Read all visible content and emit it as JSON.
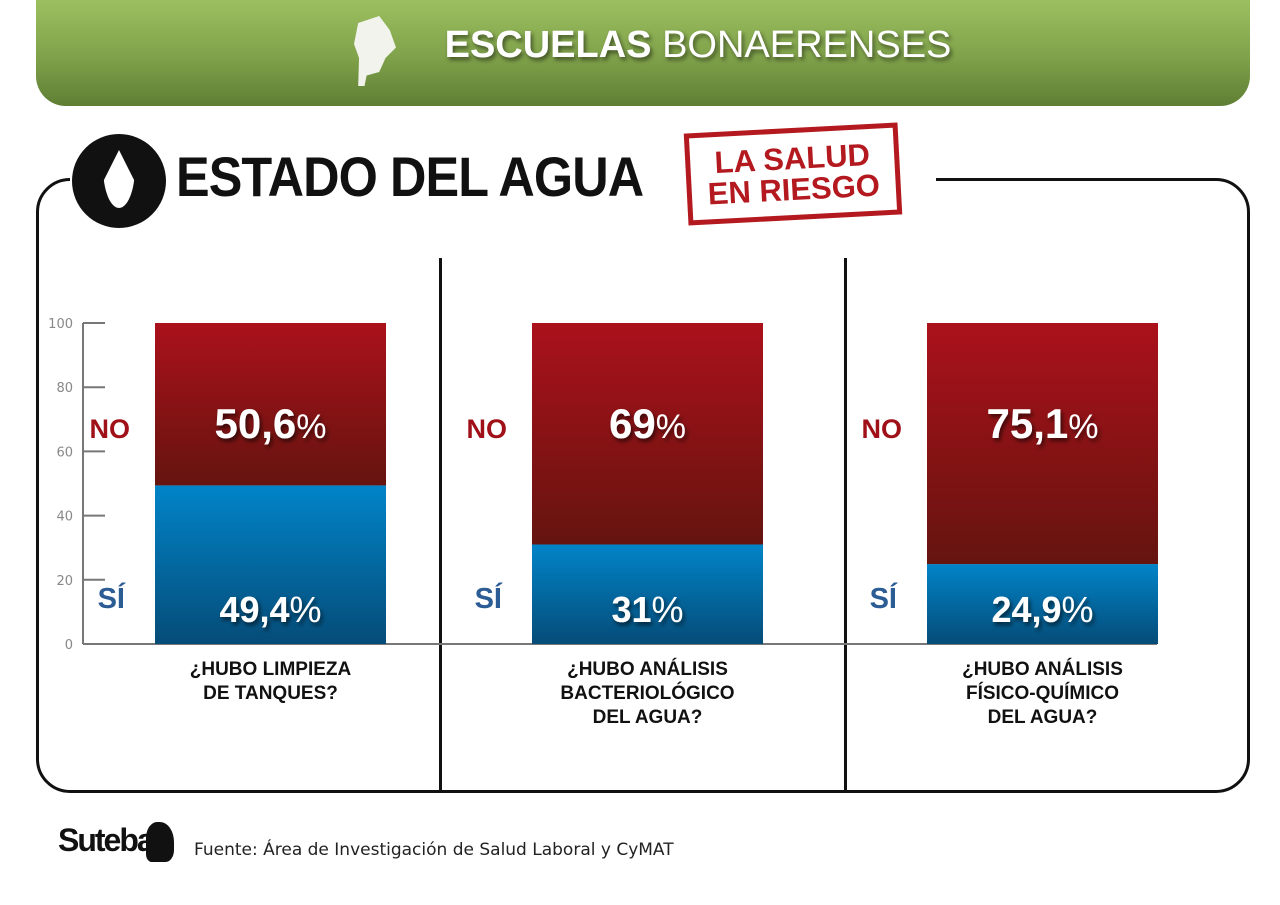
{
  "header": {
    "title_bold": "ESCUELAS",
    "title_light": "BONAERENSES"
  },
  "title": "ESTADO DEL AGUA",
  "stamp": [
    "LA SALUD",
    "EN RIESGO"
  ],
  "footer": {
    "logo": "Suteba",
    "source": "Fuente: Área de Investigación de Salud Laboral y CyMAT"
  },
  "colors": {
    "no": "#a8101a",
    "si": "#0080c4",
    "no_label": "#a01018",
    "si_label": "#2b5c94"
  },
  "chart_data": {
    "type": "bar",
    "stacked": true,
    "categories": [
      "¿HUBO LIMPIEZA\nDE TANQUES?",
      "¿HUBO ANÁLISIS\nBACTERIOLÓGICO\nDEL AGUA?",
      "¿HUBO ANÁLISIS\nFÍSICO-QUÍMICO\nDEL AGUA?"
    ],
    "series": [
      {
        "name": "SÍ",
        "values": [
          49.4,
          31,
          24.9
        ],
        "labels": [
          "49,4",
          "31",
          "24,9"
        ]
      },
      {
        "name": "NO",
        "values": [
          50.6,
          69,
          75.1
        ],
        "labels": [
          "50,6",
          "69",
          "75,1"
        ]
      }
    ],
    "ylim": [
      0,
      100
    ],
    "yticks": [
      0,
      20,
      40,
      60,
      80,
      100
    ],
    "unit": "%",
    "grid": false
  }
}
